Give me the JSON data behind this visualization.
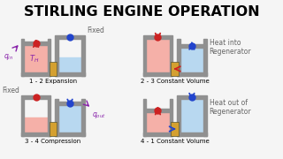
{
  "title": "STIRLING ENGINE OPERATION",
  "title_fontsize": 11.5,
  "background": "#f5f5f5",
  "panel_labels": [
    "1 - 2 Expansion",
    "2 - 3 Constant Volume",
    "3 - 4 Compression",
    "4 - 1 Constant Volume"
  ],
  "right_labels": [
    "Heat into\nRegenerator",
    "Heat out of\nRegenerator"
  ],
  "hot_color": "#f5b0a8",
  "cold_color": "#b8d8f0",
  "wall_color": "#909090",
  "regen_color": "#d4a030",
  "red_dot": "#cc2222",
  "blue_dot": "#2244cc",
  "red_arrow": "#cc2222",
  "blue_arrow": "#2244cc",
  "purple_color": "#8822aa",
  "gray_text": "#666666"
}
